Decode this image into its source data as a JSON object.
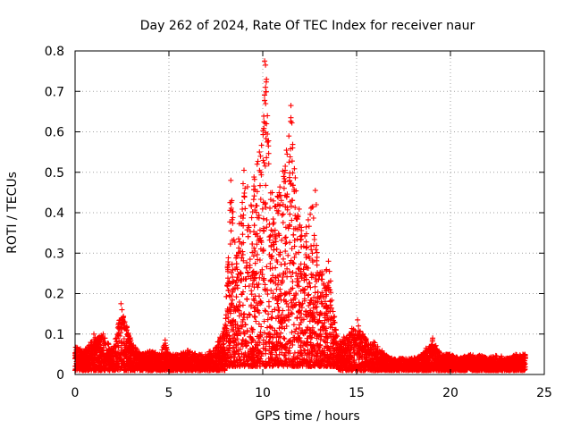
{
  "chart_data": {
    "type": "scatter",
    "title": "Day 262 of 2024, Rate Of TEC Index for receiver naur",
    "xlabel": "GPS time / hours",
    "ylabel": "ROTI / TECUs",
    "xlim": [
      0,
      25
    ],
    "ylim": [
      0,
      0.8
    ],
    "x_ticks": [
      0,
      5,
      10,
      15,
      20,
      25
    ],
    "y_ticks": [
      0,
      0.1,
      0.2,
      0.3,
      0.4,
      0.5,
      0.6,
      0.7,
      0.8
    ],
    "grid": true,
    "marker": "+",
    "series_color": "#ff0000",
    "envelope": [
      [
        0.0,
        0.07
      ],
      [
        0.5,
        0.06
      ],
      [
        1.0,
        0.09
      ],
      [
        1.5,
        0.1
      ],
      [
        2.0,
        0.06
      ],
      [
        2.5,
        0.17
      ],
      [
        3.0,
        0.08
      ],
      [
        3.5,
        0.05
      ],
      [
        4.0,
        0.06
      ],
      [
        4.5,
        0.05
      ],
      [
        4.8,
        0.08
      ],
      [
        5.0,
        0.05
      ],
      [
        5.5,
        0.05
      ],
      [
        6.0,
        0.06
      ],
      [
        6.5,
        0.05
      ],
      [
        7.0,
        0.05
      ],
      [
        7.5,
        0.07
      ],
      [
        8.0,
        0.12
      ],
      [
        8.3,
        0.48
      ],
      [
        8.6,
        0.3
      ],
      [
        9.0,
        0.5
      ],
      [
        9.3,
        0.45
      ],
      [
        9.6,
        0.5
      ],
      [
        10.0,
        0.62
      ],
      [
        10.15,
        0.77
      ],
      [
        10.4,
        0.5
      ],
      [
        10.8,
        0.45
      ],
      [
        11.2,
        0.54
      ],
      [
        11.5,
        0.66
      ],
      [
        11.8,
        0.45
      ],
      [
        12.2,
        0.35
      ],
      [
        12.6,
        0.45
      ],
      [
        13.0,
        0.25
      ],
      [
        13.5,
        0.28
      ],
      [
        14.0,
        0.08
      ],
      [
        14.5,
        0.1
      ],
      [
        15.0,
        0.13
      ],
      [
        15.5,
        0.09
      ],
      [
        16.0,
        0.08
      ],
      [
        16.5,
        0.05
      ],
      [
        17.0,
        0.04
      ],
      [
        17.5,
        0.04
      ],
      [
        18.0,
        0.04
      ],
      [
        18.5,
        0.05
      ],
      [
        19.0,
        0.09
      ],
      [
        19.5,
        0.05
      ],
      [
        20.0,
        0.05
      ],
      [
        20.5,
        0.04
      ],
      [
        21.0,
        0.05
      ],
      [
        21.5,
        0.05
      ],
      [
        22.0,
        0.04
      ],
      [
        22.5,
        0.05
      ],
      [
        23.0,
        0.04
      ],
      [
        23.5,
        0.05
      ],
      [
        24.0,
        0.05
      ]
    ],
    "highlight_points": [
      [
        10.1,
        0.775
      ],
      [
        10.15,
        0.765
      ],
      [
        10.2,
        0.73
      ],
      [
        10.15,
        0.71
      ],
      [
        10.2,
        0.62
      ],
      [
        10.25,
        0.575
      ],
      [
        10.3,
        0.565
      ],
      [
        11.5,
        0.665
      ],
      [
        11.5,
        0.635
      ],
      [
        11.3,
        0.545
      ],
      [
        11.4,
        0.525
      ],
      [
        11.2,
        0.515
      ],
      [
        8.3,
        0.48
      ],
      [
        8.35,
        0.43
      ],
      [
        9.0,
        0.505
      ],
      [
        9.7,
        0.52
      ],
      [
        9.9,
        0.5
      ],
      [
        12.8,
        0.455
      ],
      [
        12.85,
        0.42
      ],
      [
        2.45,
        0.175
      ],
      [
        2.5,
        0.16
      ],
      [
        2.55,
        0.14
      ],
      [
        15.05,
        0.135
      ],
      [
        15.1,
        0.12
      ],
      [
        4.8,
        0.085
      ],
      [
        19.05,
        0.09
      ],
      [
        13.5,
        0.28
      ],
      [
        13.55,
        0.255
      ],
      [
        1.5,
        0.1
      ],
      [
        1.0,
        0.1
      ]
    ],
    "point_count": 7000
  }
}
